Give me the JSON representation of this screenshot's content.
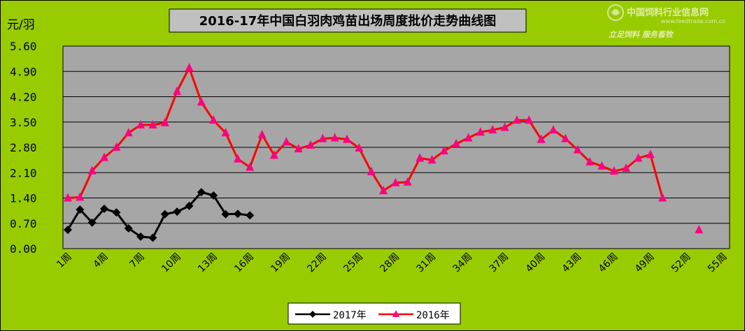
{
  "chart_data": {
    "type": "line",
    "title": "2016-17年中国白羽肉鸡苗出场周度批价走势曲线图",
    "ylabel": "元/羽",
    "xlabel": "",
    "ylim": [
      0,
      5.6
    ],
    "yticks": [
      "0.00",
      "0.70",
      "1.40",
      "2.10",
      "2.80",
      "3.50",
      "4.20",
      "4.90",
      "5.60"
    ],
    "xlim": [
      1,
      55
    ],
    "xticks": [
      1,
      4,
      7,
      10,
      13,
      16,
      19,
      22,
      25,
      28,
      31,
      34,
      37,
      40,
      43,
      46,
      49,
      52,
      55
    ],
    "xtick_suffix": "周",
    "grid": "horizontal",
    "legend_position": "bottom",
    "series": [
      {
        "name": "2017年",
        "color": "#000000",
        "marker": "diamond",
        "x": [
          1,
          2,
          3,
          4,
          5,
          6,
          7,
          8,
          9,
          10,
          11,
          12,
          13,
          14,
          15,
          16
        ],
        "values": [
          0.52,
          1.08,
          0.72,
          1.1,
          1.0,
          0.56,
          0.33,
          0.3,
          0.95,
          1.02,
          1.18,
          1.56,
          1.47,
          0.95,
          0.96,
          0.92
        ]
      },
      {
        "name": "2016年",
        "color": "#FF0000",
        "marker": "triangle",
        "x": [
          1,
          2,
          3,
          4,
          5,
          6,
          7,
          8,
          9,
          10,
          11,
          12,
          13,
          14,
          15,
          16,
          17,
          18,
          19,
          20,
          21,
          22,
          23,
          24,
          25,
          26,
          27,
          28,
          29,
          30,
          31,
          32,
          33,
          34,
          35,
          36,
          37,
          38,
          39,
          40,
          41,
          42,
          43,
          44,
          45,
          46,
          47,
          48,
          49,
          50,
          53
        ],
        "values": [
          1.4,
          1.42,
          2.15,
          2.52,
          2.8,
          3.2,
          3.42,
          3.42,
          3.48,
          4.35,
          5.0,
          4.05,
          3.55,
          3.2,
          2.48,
          2.25,
          3.15,
          2.58,
          2.95,
          2.76,
          2.86,
          3.04,
          3.06,
          3.02,
          2.78,
          2.13,
          1.6,
          1.82,
          1.84,
          2.5,
          2.45,
          2.7,
          2.9,
          3.06,
          3.22,
          3.28,
          3.35,
          3.55,
          3.55,
          3.02,
          3.28,
          3.04,
          2.73,
          2.4,
          2.28,
          2.14,
          2.22,
          2.5,
          2.6,
          1.4,
          0.52
        ]
      }
    ]
  },
  "logo": {
    "name": "中国饲料行业信息网",
    "url_text": "www.feedtrade.com.cn",
    "slogan": "立足饲料  服务畜牧",
    "colors": {
      "text": "#e8f0c0",
      "icon": "#dde8b0"
    }
  },
  "colors": {
    "background": "#99CC00",
    "plot_area": "#A6A6A6",
    "title_box": "#C0C0C0",
    "legend_box": "#FFFFFF"
  }
}
